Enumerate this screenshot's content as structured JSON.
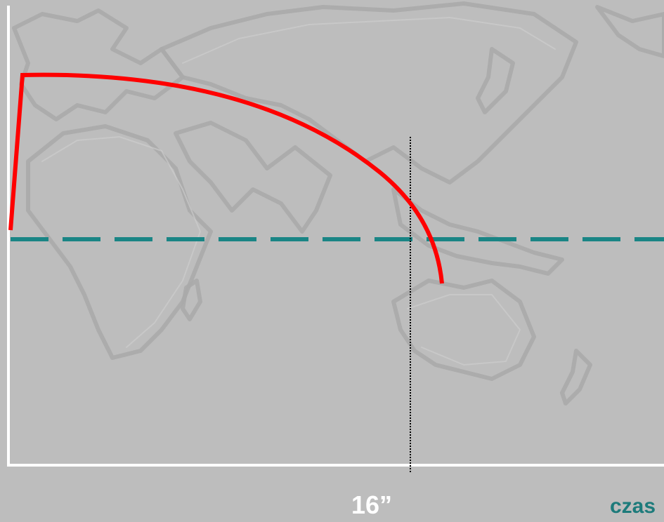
{
  "diagram": {
    "tick_label": "16”",
    "x_axis_label": "czas",
    "colors": {
      "background": "#bdbdbd",
      "map_outline": "#a9a9a9",
      "axes": "#ffffff",
      "curve": "#ff0000",
      "horizon_line": "#1a8585",
      "marker_line": "#000000",
      "axis_label": "#1d7b7b"
    }
  }
}
